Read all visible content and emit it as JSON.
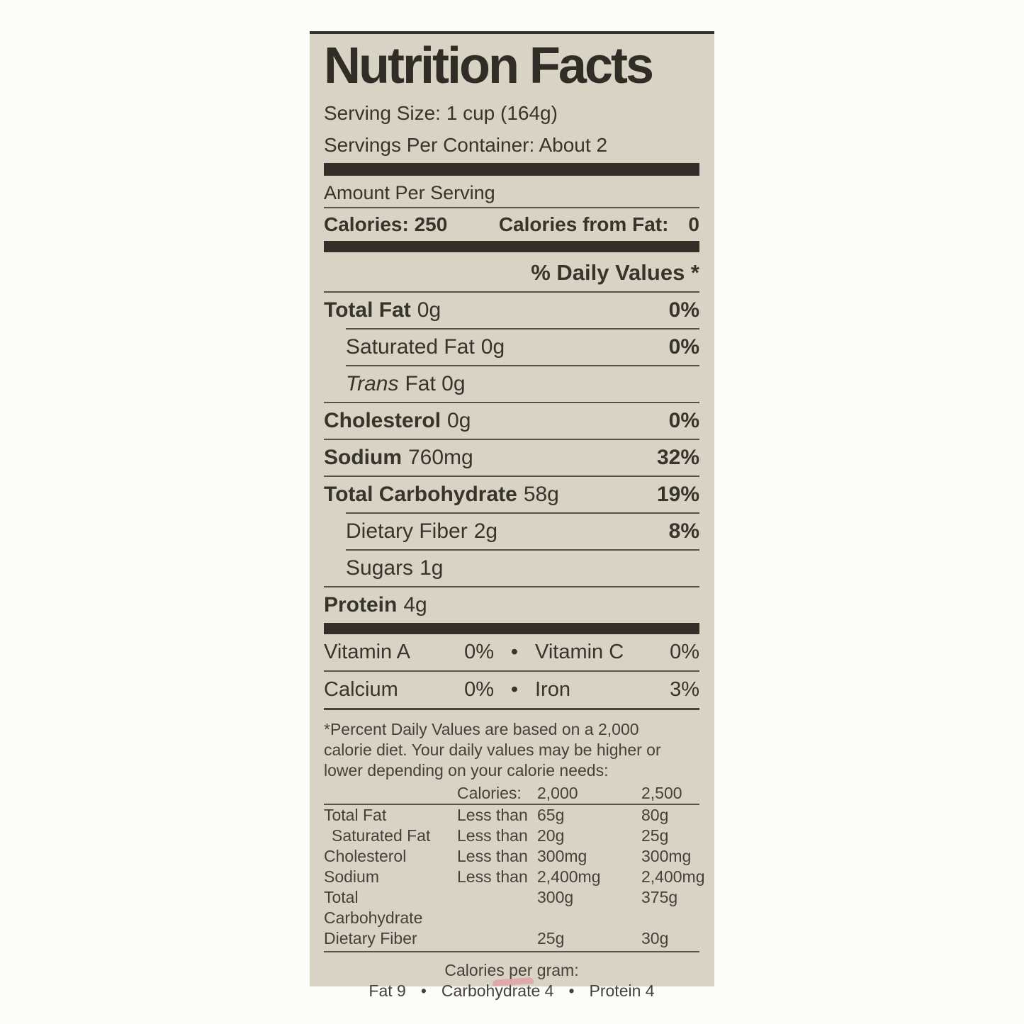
{
  "colors": {
    "page_bg": "#fcfcfb",
    "label_bg": "#d9d3c5",
    "ink": "#37342c",
    "bar": "#332f28",
    "rule": "#57534a",
    "artifact_pink": "#e09aa0"
  },
  "title": "Nutrition Facts",
  "serving_size": "Serving Size: 1 cup (164g)",
  "servings_per_container": "Servings Per Container: About 2",
  "amount_per_serving": "Amount Per Serving",
  "calories": {
    "label": "Calories:",
    "value": "250",
    "from_fat_label": "Calories from Fat:",
    "from_fat_value": "0"
  },
  "daily_values_header": "% Daily Values *",
  "bullet": "•",
  "nutrients": [
    {
      "name": "Total Fat",
      "amount": "0g",
      "dv": "0%"
    },
    {
      "name": "Saturated Fat",
      "amount": "0g",
      "dv": "0%"
    },
    {
      "name": "Trans",
      "amount": "Fat 0g",
      "dv": ""
    },
    {
      "name": "Cholesterol",
      "amount": "0g",
      "dv": "0%"
    },
    {
      "name": "Sodium",
      "amount": "760mg",
      "dv": "32%"
    },
    {
      "name": "Total Carbohydrate",
      "amount": "58g",
      "dv": "19%"
    },
    {
      "name": "Dietary Fiber",
      "amount": "2g",
      "dv": "8%"
    },
    {
      "name": "Sugars",
      "amount": "1g",
      "dv": ""
    },
    {
      "name": "Protein",
      "amount": "4g",
      "dv": ""
    }
  ],
  "vitamins": [
    {
      "name": "Vitamin A",
      "value": "0%",
      "name2": "Vitamin C",
      "value2": "0%"
    },
    {
      "name": "Calcium",
      "value": "0%",
      "name2": "Iron",
      "value2": "3%"
    }
  ],
  "footnote": [
    "*Percent Daily Values are based on a 2,000",
    "calorie diet. Your daily values may be higher or",
    "lower depending on your calorie needs:"
  ],
  "dv_table": {
    "header": {
      "col2": "Calories:",
      "col3": "2,000",
      "col4": "2,500"
    },
    "rows": [
      {
        "name": "Total Fat",
        "qual": "Less than",
        "v1": "65g",
        "v2": "80g"
      },
      {
        "name": "Saturated Fat",
        "qual": "Less than",
        "v1": "20g",
        "v2": "25g"
      },
      {
        "name": "Cholesterol",
        "qual": "Less than",
        "v1": "300mg",
        "v2": "300mg"
      },
      {
        "name": "Sodium",
        "qual": "Less than",
        "v1": "2,400mg",
        "v2": "2,400mg"
      },
      {
        "name": "Total Carbohydrate",
        "qual": "",
        "v1": "300g",
        "v2": "375g"
      },
      {
        "name": "Dietary Fiber",
        "qual": "",
        "v1": "25g",
        "v2": "30g"
      }
    ]
  },
  "calories_per_gram": {
    "title": "Calories per gram:",
    "items": [
      "Fat 9",
      "Carbohydrate 4",
      "Protein 4"
    ]
  }
}
